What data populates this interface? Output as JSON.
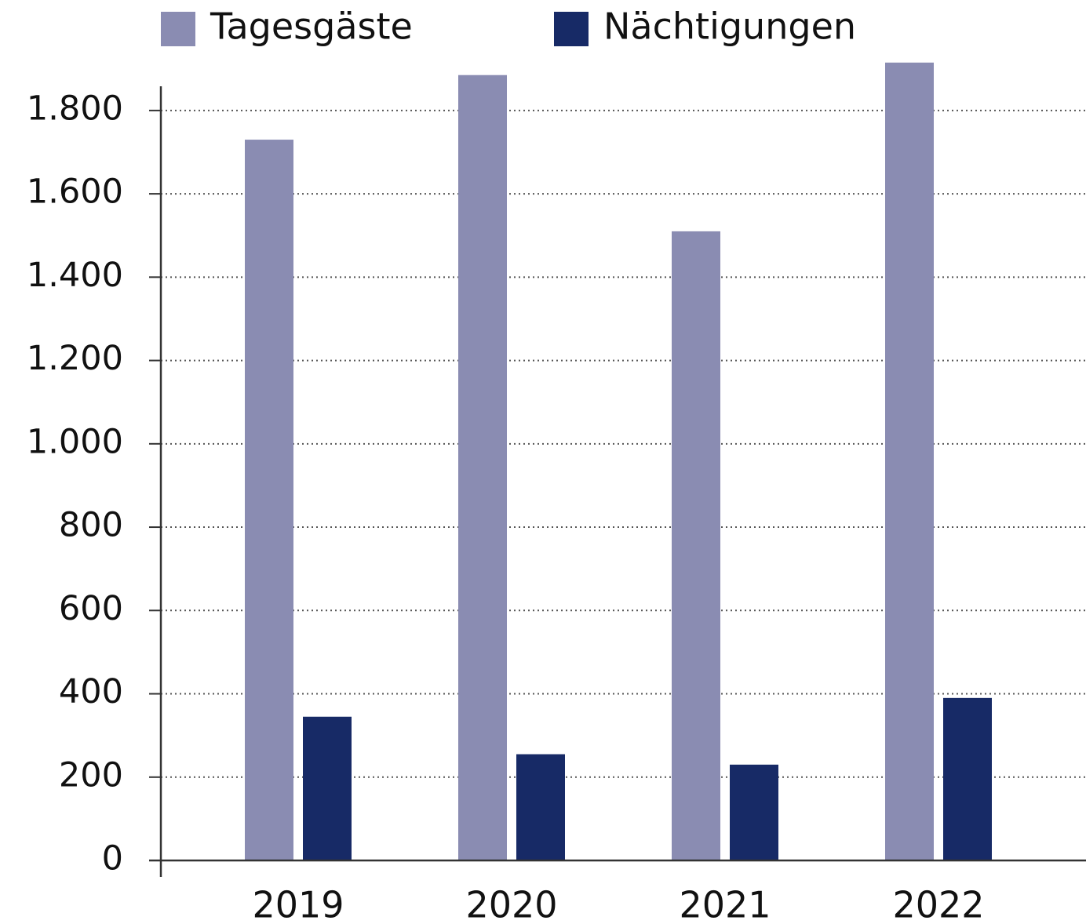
{
  "chart_data": {
    "type": "bar",
    "categories": [
      "2019",
      "2020",
      "2021",
      "2022"
    ],
    "series": [
      {
        "name": "Tagesgäste",
        "color": "#8a8cb2",
        "values": [
          1730,
          1885,
          1510,
          1915
        ]
      },
      {
        "name": "Nächtigungen",
        "color": "#172a66",
        "values": [
          345,
          255,
          230,
          390
        ]
      }
    ],
    "ylim": [
      0,
      1860
    ],
    "yticks": [
      0,
      200,
      400,
      600,
      800,
      {
        "value": 1000,
        "label": "1.000"
      },
      {
        "value": 1200,
        "label": "1.200"
      },
      {
        "value": 1400,
        "label": "1.400"
      },
      {
        "value": 1600,
        "label": "1.600"
      },
      {
        "value": 1800,
        "label": "1.800"
      }
    ],
    "grid": true,
    "legend": "top"
  }
}
